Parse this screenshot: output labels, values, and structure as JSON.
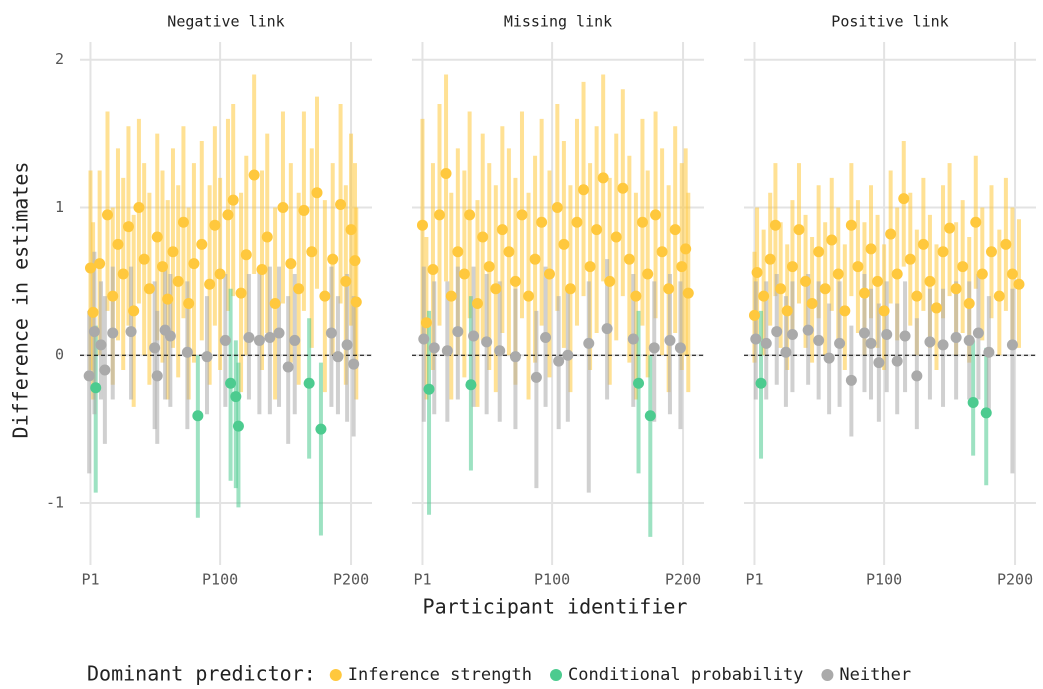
{
  "x_label": "Participant identifier",
  "y_label": "Difference in estimates",
  "legend_title": "Dominant predictor:",
  "legend_position": "bottom",
  "chart_data": [
    {
      "type": "scatter",
      "title": "Negative link",
      "xlim": [
        -7,
        216
      ],
      "xticks": [
        {
          "value": 1,
          "label": "P1"
        },
        {
          "value": 100,
          "label": "P100"
        },
        {
          "value": 200,
          "label": "P200"
        }
      ],
      "ylim": [
        -1.42,
        2.12
      ],
      "yticks": [
        -1,
        0,
        1,
        2
      ],
      "hline": 0,
      "grid": true,
      "series": [
        {
          "name": "Inference strength",
          "color": "#ffc83d",
          "x": [
            1,
            3,
            8,
            14,
            18,
            22,
            26,
            30,
            34,
            38,
            42,
            46,
            52,
            56,
            60,
            64,
            68,
            72,
            76,
            80,
            86,
            92,
            96,
            100,
            106,
            110,
            116,
            120,
            126,
            132,
            136,
            142,
            148,
            154,
            160,
            164,
            170,
            174,
            180,
            186,
            192,
            196,
            200,
            203,
            204
          ],
          "values": [
            0.59,
            0.29,
            0.62,
            0.95,
            0.4,
            0.75,
            0.55,
            0.87,
            0.3,
            1.0,
            0.65,
            0.45,
            0.8,
            0.6,
            0.38,
            0.7,
            0.5,
            0.9,
            0.35,
            0.62,
            0.75,
            0.48,
            0.88,
            0.55,
            0.95,
            1.05,
            0.42,
            0.68,
            1.22,
            0.58,
            0.8,
            0.35,
            1.0,
            0.62,
            0.45,
            0.98,
            0.7,
            1.1,
            0.4,
            0.65,
            1.02,
            0.5,
            0.85,
            0.64,
            0.36
          ],
          "lower": [
            -0.1,
            -0.3,
            0.0,
            0.3,
            -0.2,
            0.1,
            -0.1,
            0.2,
            -0.35,
            0.35,
            0.0,
            -0.2,
            0.1,
            -0.05,
            -0.3,
            0.05,
            -0.15,
            0.25,
            -0.3,
            -0.05,
            0.1,
            -0.2,
            0.2,
            -0.1,
            0.3,
            0.4,
            -0.25,
            0.0,
            0.55,
            -0.1,
            0.15,
            -0.3,
            0.35,
            -0.05,
            -0.2,
            0.3,
            0.05,
            0.45,
            -0.25,
            0.0,
            0.35,
            -0.2,
            0.2,
            0.0,
            -0.3
          ],
          "upper": [
            1.25,
            0.9,
            1.25,
            1.65,
            1.0,
            1.4,
            1.2,
            1.55,
            0.95,
            1.6,
            1.3,
            1.1,
            1.5,
            1.25,
            1.05,
            1.4,
            1.15,
            1.55,
            1.0,
            1.3,
            1.45,
            1.15,
            1.55,
            1.2,
            1.6,
            1.7,
            1.1,
            1.35,
            1.9,
            1.25,
            1.5,
            1.0,
            1.65,
            1.3,
            1.1,
            1.65,
            1.4,
            1.75,
            1.05,
            1.3,
            1.7,
            1.15,
            1.5,
            1.3,
            1.0
          ]
        },
        {
          "name": "Conditional probability",
          "color": "#4ccb8f",
          "x": [
            5,
            83,
            108,
            112,
            114,
            168,
            177
          ],
          "values": [
            -0.22,
            -0.41,
            -0.19,
            -0.28,
            -0.48,
            -0.19,
            -0.5
          ],
          "lower": [
            -0.93,
            -1.1,
            -0.85,
            -0.9,
            -1.03,
            -0.7,
            -1.22
          ],
          "upper": [
            0.2,
            0.0,
            0.45,
            0.1,
            -0.05,
            0.25,
            -0.05
          ]
        },
        {
          "name": "Neither",
          "color": "#aaaaaa",
          "x": [
            0,
            4,
            9,
            12,
            18,
            32,
            50,
            52,
            58,
            62,
            75,
            90,
            104,
            122,
            130,
            138,
            145,
            152,
            157,
            185,
            190,
            197,
            202
          ],
          "values": [
            -0.14,
            0.16,
            0.07,
            -0.1,
            0.15,
            0.16,
            0.05,
            -0.14,
            0.17,
            0.13,
            0.02,
            -0.01,
            0.1,
            0.12,
            0.1,
            0.12,
            0.15,
            -0.08,
            0.1,
            0.15,
            -0.01,
            0.07,
            -0.06
          ],
          "lower": [
            -0.8,
            -0.4,
            -0.3,
            -0.6,
            -0.3,
            -0.3,
            -0.5,
            -0.6,
            -0.3,
            -0.35,
            -0.5,
            -0.4,
            -0.35,
            -0.3,
            -0.4,
            -0.4,
            -0.35,
            -0.6,
            -0.4,
            -0.35,
            -0.4,
            -0.45,
            -0.55
          ],
          "upper": [
            0.3,
            0.7,
            0.5,
            0.4,
            0.6,
            0.6,
            0.5,
            0.3,
            0.6,
            0.55,
            0.5,
            0.4,
            0.55,
            0.55,
            0.6,
            0.6,
            0.6,
            0.4,
            0.55,
            0.6,
            0.4,
            0.55,
            0.4
          ]
        }
      ]
    },
    {
      "type": "scatter",
      "title": "Missing link",
      "xlim": [
        -7,
        216
      ],
      "xticks": [
        {
          "value": 1,
          "label": "P1"
        },
        {
          "value": 100,
          "label": "P100"
        },
        {
          "value": 200,
          "label": "P200"
        }
      ],
      "hline": 0,
      "grid": true,
      "series": [
        {
          "name": "Inference strength",
          "color": "#ffc83d",
          "x": [
            1,
            4,
            9,
            14,
            19,
            23,
            28,
            33,
            37,
            43,
            47,
            52,
            57,
            62,
            67,
            72,
            77,
            82,
            87,
            92,
            98,
            104,
            109,
            114,
            119,
            124,
            129,
            134,
            139,
            144,
            149,
            154,
            159,
            164,
            169,
            173,
            179,
            184,
            189,
            194,
            199,
            202,
            204
          ],
          "values": [
            0.88,
            0.22,
            0.58,
            0.95,
            1.23,
            0.4,
            0.7,
            0.55,
            0.95,
            0.35,
            0.8,
            0.6,
            0.45,
            0.85,
            0.7,
            0.5,
            0.95,
            0.4,
            0.65,
            0.9,
            0.55,
            1.0,
            0.75,
            0.45,
            0.9,
            1.12,
            0.6,
            0.85,
            1.2,
            0.5,
            0.8,
            1.13,
            0.65,
            0.4,
            0.9,
            0.55,
            0.95,
            0.7,
            0.45,
            0.85,
            0.6,
            0.72,
            0.42
          ],
          "lower": [
            0.1,
            -0.3,
            -0.1,
            0.2,
            0.5,
            -0.3,
            0.0,
            -0.15,
            0.25,
            -0.35,
            0.1,
            -0.1,
            -0.25,
            0.15,
            0.0,
            -0.2,
            0.25,
            -0.3,
            -0.05,
            0.2,
            -0.15,
            0.3,
            0.05,
            -0.25,
            0.2,
            0.4,
            -0.1,
            0.15,
            0.5,
            -0.2,
            0.1,
            0.4,
            -0.05,
            -0.3,
            0.2,
            -0.15,
            0.25,
            0.0,
            -0.25,
            0.15,
            -0.1,
            0.0,
            -0.25
          ],
          "upper": [
            1.6,
            0.8,
            1.3,
            1.7,
            1.9,
            1.1,
            1.4,
            1.25,
            1.65,
            1.05,
            1.5,
            1.3,
            1.15,
            1.55,
            1.4,
            1.2,
            1.65,
            1.1,
            1.35,
            1.6,
            1.25,
            1.7,
            1.45,
            1.15,
            1.6,
            1.85,
            1.3,
            1.55,
            1.9,
            1.2,
            1.5,
            1.8,
            1.35,
            1.1,
            1.6,
            1.25,
            1.65,
            1.4,
            1.15,
            1.55,
            1.3,
            1.4,
            1.1
          ]
        },
        {
          "name": "Conditional probability",
          "color": "#4ccb8f",
          "x": [
            6,
            38,
            166,
            175
          ],
          "values": [
            -0.23,
            -0.2,
            -0.19,
            -0.41
          ],
          "lower": [
            -1.08,
            -0.78,
            -0.8,
            -1.23
          ],
          "upper": [
            0.3,
            0.4,
            0.3,
            0.0
          ]
        },
        {
          "name": "Neither",
          "color": "#aaaaaa",
          "x": [
            2,
            10,
            20,
            28,
            40,
            50,
            60,
            72,
            88,
            95,
            105,
            112,
            128,
            142,
            162,
            178,
            190,
            198
          ],
          "values": [
            0.11,
            0.05,
            0.03,
            0.16,
            0.13,
            0.09,
            0.03,
            -0.01,
            -0.15,
            0.12,
            -0.04,
            0.0,
            0.08,
            0.18,
            0.11,
            0.05,
            0.1,
            0.05
          ],
          "lower": [
            -0.45,
            -0.4,
            -0.45,
            -0.3,
            -0.35,
            -0.4,
            -0.45,
            -0.5,
            -0.9,
            -0.35,
            -0.5,
            -0.45,
            -0.93,
            -0.3,
            -0.35,
            -0.45,
            -0.4,
            -0.5
          ],
          "upper": [
            0.6,
            0.5,
            0.5,
            0.6,
            0.6,
            0.55,
            0.5,
            0.45,
            0.3,
            0.6,
            0.4,
            0.45,
            0.5,
            0.65,
            0.55,
            0.5,
            0.55,
            0.5
          ]
        }
      ]
    },
    {
      "type": "scatter",
      "title": "Positive link",
      "xlim": [
        -7,
        216
      ],
      "xticks": [
        {
          "value": 1,
          "label": "P1"
        },
        {
          "value": 100,
          "label": "P100"
        },
        {
          "value": 200,
          "label": "P200"
        }
      ],
      "hline": 0,
      "grid": true,
      "series": [
        {
          "name": "Inference strength",
          "color": "#ffc83d",
          "x": [
            1,
            3,
            8,
            13,
            17,
            21,
            26,
            30,
            35,
            40,
            45,
            50,
            55,
            60,
            65,
            70,
            75,
            80,
            85,
            90,
            95,
            100,
            105,
            110,
            115,
            120,
            125,
            130,
            135,
            140,
            145,
            150,
            155,
            160,
            165,
            170,
            175,
            182,
            188,
            193,
            198,
            203
          ],
          "values": [
            0.27,
            0.56,
            0.4,
            0.65,
            0.88,
            0.45,
            0.3,
            0.6,
            0.85,
            0.5,
            0.35,
            0.7,
            0.45,
            0.78,
            0.55,
            0.3,
            0.88,
            0.6,
            0.42,
            0.72,
            0.5,
            0.3,
            0.82,
            0.55,
            1.06,
            0.65,
            0.4,
            0.75,
            0.5,
            0.32,
            0.7,
            0.86,
            0.45,
            0.6,
            0.35,
            0.9,
            0.55,
            0.7,
            0.4,
            0.75,
            0.55,
            0.48
          ],
          "lower": [
            -0.05,
            0.1,
            0.0,
            0.2,
            0.4,
            0.05,
            -0.1,
            0.15,
            0.35,
            0.05,
            -0.05,
            0.25,
            0.0,
            0.3,
            0.1,
            -0.1,
            0.4,
            0.15,
            0.0,
            0.25,
            0.05,
            -0.1,
            0.35,
            0.1,
            0.6,
            0.2,
            0.0,
            0.3,
            0.05,
            -0.1,
            0.25,
            0.4,
            0.0,
            0.15,
            -0.05,
            0.45,
            0.1,
            0.25,
            0.0,
            0.3,
            0.1,
            0.05
          ],
          "upper": [
            0.7,
            1.0,
            0.85,
            1.1,
            1.3,
            0.9,
            0.75,
            1.05,
            1.3,
            0.95,
            0.8,
            1.15,
            0.9,
            1.2,
            1.0,
            0.75,
            1.3,
            1.05,
            0.9,
            1.15,
            0.95,
            0.75,
            1.25,
            1.0,
            1.45,
            1.1,
            0.85,
            1.2,
            0.95,
            0.75,
            1.15,
            1.3,
            0.9,
            1.05,
            0.8,
            1.35,
            1.0,
            1.15,
            0.85,
            1.2,
            1.0,
            0.92
          ]
        },
        {
          "name": "Conditional probability",
          "color": "#4ccb8f",
          "x": [
            6,
            168,
            178
          ],
          "values": [
            -0.19,
            -0.32,
            -0.39
          ],
          "lower": [
            -0.7,
            -0.68,
            -0.88
          ],
          "upper": [
            0.3,
            0.1,
            0.05
          ]
        },
        {
          "name": "Neither",
          "color": "#aaaaaa",
          "x": [
            2,
            10,
            18,
            25,
            30,
            42,
            50,
            58,
            66,
            75,
            85,
            90,
            96,
            102,
            110,
            116,
            125,
            135,
            145,
            155,
            165,
            172,
            180,
            198
          ],
          "values": [
            0.11,
            0.08,
            0.16,
            0.02,
            0.14,
            0.17,
            0.1,
            -0.02,
            0.08,
            -0.17,
            0.15,
            0.08,
            -0.05,
            0.14,
            -0.04,
            0.13,
            -0.14,
            0.09,
            0.07,
            0.12,
            0.1,
            0.15,
            0.02,
            0.07
          ],
          "lower": [
            -0.3,
            -0.3,
            -0.2,
            -0.35,
            -0.25,
            -0.2,
            -0.3,
            -0.4,
            -0.35,
            -0.55,
            -0.25,
            -0.3,
            -0.45,
            -0.25,
            -0.4,
            -0.25,
            -0.5,
            -0.3,
            -0.35,
            -0.3,
            -0.3,
            -0.3,
            -0.4,
            -0.8
          ],
          "upper": [
            0.5,
            0.5,
            0.55,
            0.4,
            0.5,
            0.55,
            0.5,
            0.35,
            0.5,
            0.2,
            0.55,
            0.45,
            0.35,
            0.5,
            0.35,
            0.5,
            0.25,
            0.45,
            0.45,
            0.5,
            0.5,
            0.55,
            0.4,
            0.45
          ]
        }
      ]
    }
  ]
}
